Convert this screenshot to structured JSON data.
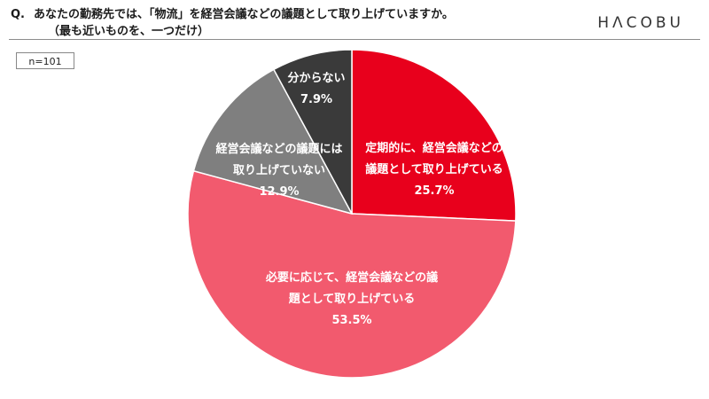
{
  "question": {
    "prefix": "Q.",
    "line1": "あなたの勤務先では、「物流」を経営会議などの議題として取り上げていますか。",
    "line2": "（最も近いものを、一つだけ）"
  },
  "logo": "HΛCOBU",
  "sample": "n=101",
  "chart_data": {
    "type": "pie",
    "title": "",
    "start_angle": "12 o'clock",
    "direction": "clockwise",
    "slices": [
      {
        "label_lines": [
          "定期的に、経営会議などの",
          "議題として取り上げている"
        ],
        "value": 25.7,
        "value_label": "25.7%",
        "color": "#e8001c"
      },
      {
        "label_lines": [
          "必要に応じて、経営会議などの議",
          "題として取り上げている"
        ],
        "value": 53.5,
        "value_label": "53.5%",
        "color": "#f25a6e"
      },
      {
        "label_lines": [
          "経営会議などの議題には",
          "取り上げていない"
        ],
        "value": 12.9,
        "value_label": "12.9%",
        "color": "#7f7f7f"
      },
      {
        "label_lines": [
          "分からない"
        ],
        "value": 7.9,
        "value_label": "7.9%",
        "color": "#3a3a3a"
      }
    ]
  }
}
